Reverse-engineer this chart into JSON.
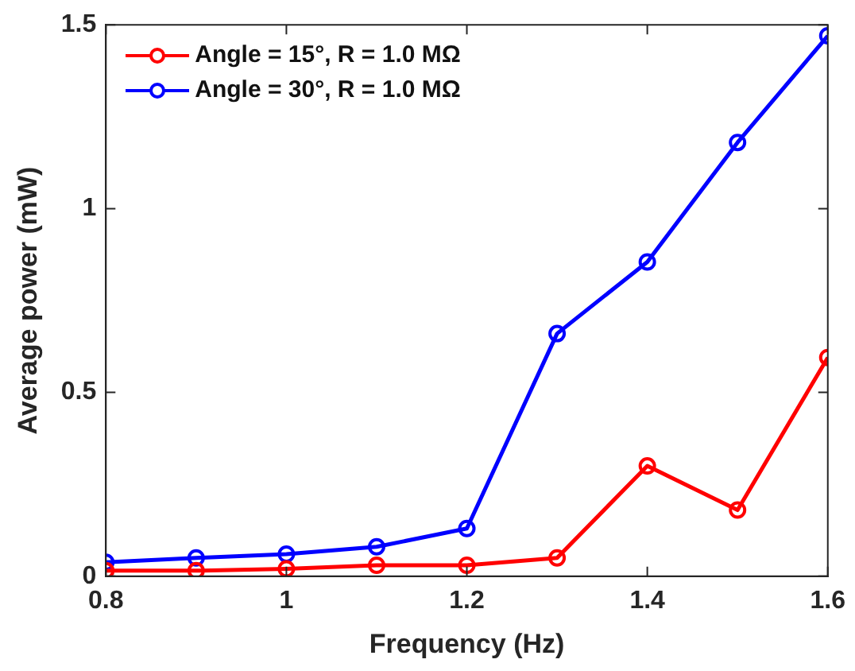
{
  "chart_data": {
    "type": "line",
    "xlabel": "Frequency (Hz)",
    "ylabel": "Average power (mW)",
    "x": [
      0.8,
      0.9,
      1.0,
      1.1,
      1.2,
      1.3,
      1.4,
      1.5,
      1.6
    ],
    "series": [
      {
        "name": "Angle = 15°, R = 1.0 MΩ",
        "color": "#ff0000",
        "values": [
          0.015,
          0.015,
          0.02,
          0.03,
          0.03,
          0.05,
          0.3,
          0.18,
          0.595
        ]
      },
      {
        "name": "Angle = 30°, R = 1.0 MΩ",
        "color": "#0000ff",
        "values": [
          0.038,
          0.05,
          0.06,
          0.08,
          0.13,
          0.66,
          0.855,
          1.18,
          1.47
        ]
      }
    ],
    "xlim": [
      0.8,
      1.6
    ],
    "xticks": [
      0.8,
      1,
      1.2,
      1.4,
      1.6
    ],
    "ylim": [
      0,
      1.5
    ],
    "yticks": [
      0,
      0.5,
      1,
      1.5
    ],
    "grid": false,
    "legend": "top left",
    "marker": "circle",
    "line_style": "solid"
  }
}
